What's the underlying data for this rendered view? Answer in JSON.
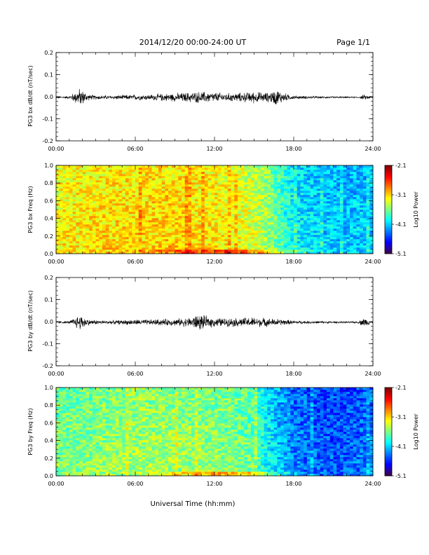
{
  "header": {
    "date_range": "2014/12/20  00:00-24:00 UT",
    "page": "Page 1/1"
  },
  "chart_data": [
    {
      "type": "line",
      "ylabel": "PG3 bx dB/dt (nT/sec)",
      "xticks": [
        "00:00",
        "06:00",
        "12:00",
        "18:00",
        "24:00"
      ],
      "yticks": [
        "0.2",
        "0.1",
        "0.0",
        "-0.1",
        "-0.2"
      ],
      "xlim": [
        0,
        24
      ],
      "ylim": [
        -0.2,
        0.2
      ],
      "envelope": {
        "hours": [
          0,
          1,
          1.8,
          2.5,
          3,
          4,
          5,
          6,
          7,
          8,
          9,
          10,
          11,
          12,
          13,
          14,
          15,
          16,
          16.7,
          17.5,
          18,
          19,
          20,
          21,
          22,
          23,
          23.3,
          24
        ],
        "amp": [
          0.003,
          0.006,
          0.04,
          0.012,
          0.01,
          0.008,
          0.01,
          0.012,
          0.012,
          0.016,
          0.018,
          0.022,
          0.025,
          0.022,
          0.018,
          0.02,
          0.025,
          0.02,
          0.035,
          0.014,
          0.008,
          0.006,
          0.004,
          0.004,
          0.003,
          0.003,
          0.012,
          0.003
        ]
      }
    },
    {
      "type": "heatmap",
      "ylabel": "PG3 bx Freq (Hz)",
      "xticks": [
        "00:00",
        "06:00",
        "12:00",
        "18:00",
        "24:00"
      ],
      "yticks": [
        "1.0",
        "0.8",
        "0.6",
        "0.4",
        "0.2",
        "0.0"
      ],
      "xlim": [
        0,
        24
      ],
      "ylim": [
        0,
        1
      ],
      "colorbar": {
        "label": "Log10 Power",
        "ticks": [
          "-2.1",
          "-3.1",
          "-4.1",
          "-5.1"
        ]
      },
      "activity": {
        "hours": [
          0,
          3,
          6,
          9,
          12,
          14,
          16,
          17,
          18,
          20,
          22,
          24
        ],
        "level": [
          0.64,
          0.66,
          0.67,
          0.68,
          0.65,
          0.62,
          0.55,
          0.45,
          0.38,
          0.34,
          0.33,
          0.34
        ]
      }
    },
    {
      "type": "line",
      "ylabel": "PG3 by dB/dt (nT/sec)",
      "xticks": [
        "00:00",
        "06:00",
        "12:00",
        "18:00",
        "24:00"
      ],
      "yticks": [
        "0.2",
        "0.1",
        "0.0",
        "-0.1",
        "-0.2"
      ],
      "xlim": [
        0,
        24
      ],
      "ylim": [
        -0.2,
        0.2
      ],
      "envelope": {
        "hours": [
          0,
          1,
          1.8,
          2.5,
          3,
          4,
          5,
          6,
          7,
          8,
          9,
          10,
          10.8,
          11.5,
          12,
          13,
          14,
          15,
          16,
          17,
          18,
          19,
          20,
          21,
          22,
          22.9,
          23.3,
          24
        ],
        "amp": [
          0.003,
          0.006,
          0.035,
          0.012,
          0.01,
          0.008,
          0.01,
          0.012,
          0.012,
          0.014,
          0.015,
          0.02,
          0.035,
          0.025,
          0.02,
          0.018,
          0.02,
          0.022,
          0.018,
          0.014,
          0.008,
          0.006,
          0.005,
          0.004,
          0.004,
          0.004,
          0.02,
          0.003
        ]
      }
    },
    {
      "type": "heatmap",
      "ylabel": "PG3 by Freq (Hz)",
      "xticks": [
        "00:00",
        "06:00",
        "12:00",
        "18:00",
        "24:00"
      ],
      "yticks": [
        "1.0",
        "0.8",
        "0.6",
        "0.4",
        "0.2",
        "0.0"
      ],
      "xlim": [
        0,
        24
      ],
      "ylim": [
        0,
        1
      ],
      "colorbar": {
        "label": "Log10 Power",
        "ticks": [
          "-2.1",
          "-3.1",
          "-4.1",
          "-5.1"
        ]
      },
      "activity": {
        "hours": [
          0,
          3,
          6,
          9,
          12,
          14,
          15,
          16,
          17,
          18,
          20,
          22,
          24
        ],
        "level": [
          0.5,
          0.52,
          0.54,
          0.54,
          0.52,
          0.5,
          0.48,
          0.38,
          0.32,
          0.26,
          0.22,
          0.22,
          0.26
        ]
      }
    }
  ],
  "xaxis_label": "Universal Time (hh:mm)"
}
